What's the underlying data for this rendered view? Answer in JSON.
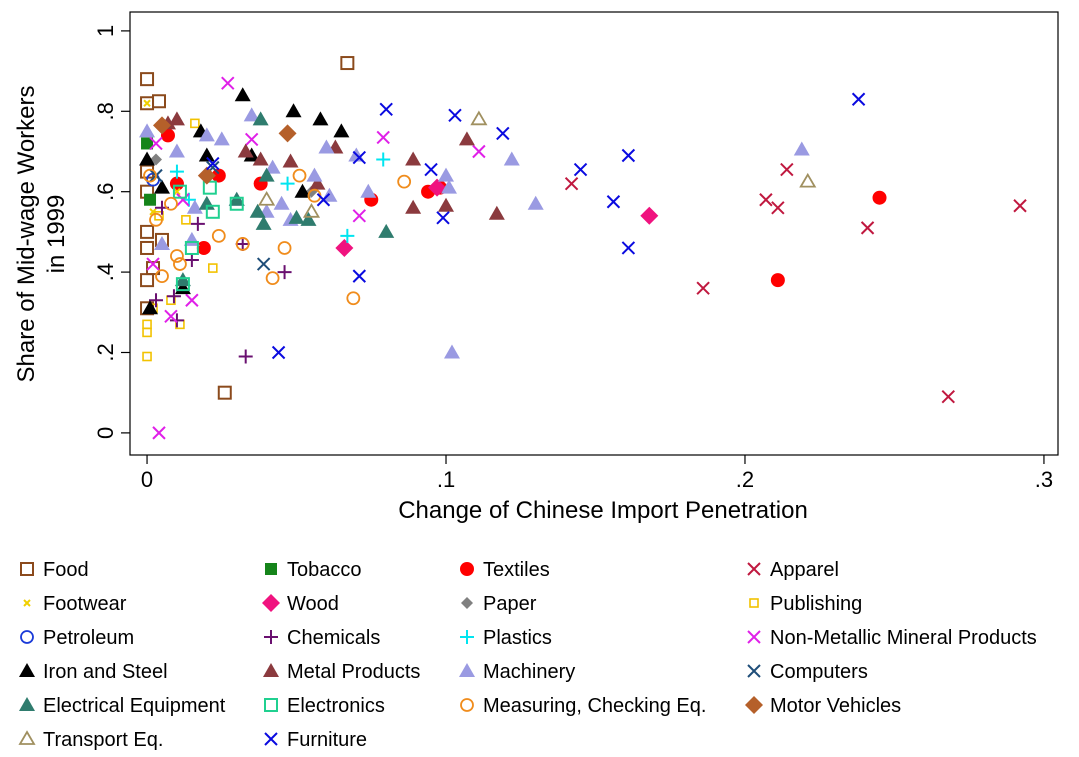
{
  "chart_data": {
    "type": "scatter",
    "xlabel": "Change of Chinese Import Penetration",
    "ylabel": [
      "Share of Mid-wage Workers",
      "in 1999"
    ],
    "xlim": [
      -0.0057,
      0.3047
    ],
    "ylim": [
      -0.055,
      1.047
    ],
    "xticks": [
      0,
      {
        "value": 0.1,
        "label": ".1"
      },
      {
        "value": 0.2,
        "label": ".2"
      },
      {
        "value": 0.3,
        "label": ".3"
      }
    ],
    "yticks": [
      0,
      {
        "value": 0.2,
        "label": ".2"
      },
      {
        "value": 0.4,
        "label": ".4"
      },
      {
        "value": 0.6,
        "label": ".6"
      },
      {
        "value": 0.8,
        "label": ".8"
      },
      1
    ],
    "legend_columns": 4,
    "series": [
      {
        "name": "Food",
        "color": "#8b4a1c",
        "marker": "square-open",
        "x": [
          0,
          0,
          0.004,
          0.067,
          0.026,
          0,
          0,
          0,
          0,
          0.005,
          0.002,
          0,
          0
        ],
        "values": [
          0.88,
          0.82,
          0.825,
          0.92,
          0.1,
          0.5,
          0.46,
          0.38,
          0.31,
          0.48,
          0.41,
          0.6,
          0.65
        ]
      },
      {
        "name": "Tobacco",
        "color": "#15841a",
        "marker": "square",
        "x": [
          0,
          0.001
        ],
        "values": [
          0.72,
          0.58
        ]
      },
      {
        "name": "Textiles",
        "color": "#ff0000",
        "marker": "circle",
        "x": [
          0.075,
          0.094,
          0.098,
          0.211,
          0.245,
          0.007,
          0.038,
          0.024,
          0.019,
          0.01
        ],
        "values": [
          0.58,
          0.6,
          0.61,
          0.38,
          0.585,
          0.74,
          0.62,
          0.64,
          0.46,
          0.62
        ]
      },
      {
        "name": "Apparel",
        "color": "#c0183f",
        "marker": "x",
        "x": [
          0.142,
          0.186,
          0.207,
          0.211,
          0.214,
          0.241,
          0.268,
          0.292
        ],
        "values": [
          0.62,
          0.36,
          0.58,
          0.56,
          0.655,
          0.51,
          0.09,
          0.565
        ]
      },
      {
        "name": "Footwear",
        "color": "#f0d000",
        "marker": "x-small",
        "x": [
          0,
          0.002,
          0.01
        ],
        "values": [
          0.82,
          0.55,
          0.6
        ]
      },
      {
        "name": "Wood",
        "color": "#f0137f",
        "marker": "diamond",
        "x": [
          0.066,
          0.168,
          0.097
        ],
        "values": [
          0.46,
          0.54,
          0.61
        ]
      },
      {
        "name": "Paper",
        "color": "#808080",
        "marker": "diamond-small",
        "x": [
          0.003,
          0.055
        ],
        "values": [
          0.68,
          0.6
        ]
      },
      {
        "name": "Publishing",
        "color": "#f2c200",
        "marker": "square-open-small",
        "x": [
          0,
          0,
          0,
          0.002,
          0.011,
          0.022,
          0.013,
          0.016,
          0.008,
          0.004
        ],
        "values": [
          0.19,
          0.25,
          0.27,
          0.31,
          0.27,
          0.41,
          0.53,
          0.77,
          0.33,
          0.54
        ]
      },
      {
        "name": "Petroleum",
        "color": "#1a3ad8",
        "marker": "circle-open",
        "x": [
          0.002
        ],
        "values": [
          0.63
        ]
      },
      {
        "name": "Chemicals",
        "color": "#6a1070",
        "marker": "plus",
        "x": [
          0.003,
          0.009,
          0.01,
          0.015,
          0.017,
          0.033,
          0.046,
          0.032,
          0.005,
          0.02
        ],
        "values": [
          0.33,
          0.34,
          0.28,
          0.43,
          0.52,
          0.19,
          0.4,
          0.47,
          0.56,
          0.64
        ]
      },
      {
        "name": "Plastics",
        "color": "#00e5f0",
        "marker": "plus",
        "x": [
          0.067,
          0.079,
          0.01,
          0.014,
          0.047
        ],
        "values": [
          0.49,
          0.68,
          0.65,
          0.58,
          0.62
        ]
      },
      {
        "name": "Non-Metallic Mineral Products",
        "color": "#e020e8",
        "marker": "x",
        "x": [
          0.002,
          0.004,
          0.027,
          0.008,
          0.015,
          0.071,
          0.079,
          0.111,
          0.035,
          0.003,
          0.012
        ],
        "values": [
          0.42,
          0.0,
          0.87,
          0.29,
          0.33,
          0.54,
          0.735,
          0.7,
          0.73,
          0.72,
          0.58
        ]
      },
      {
        "name": "Iron and Steel",
        "color": "#000000",
        "marker": "triangle",
        "x": [
          0.001,
          0.012,
          0.032,
          0.049,
          0.058,
          0.065,
          0.018,
          0.0,
          0.005,
          0.035,
          0.052,
          0.02
        ],
        "values": [
          0.31,
          0.36,
          0.84,
          0.8,
          0.78,
          0.75,
          0.75,
          0.68,
          0.61,
          0.69,
          0.6,
          0.69
        ]
      },
      {
        "name": "Metal Products",
        "color": "#8b3a3e",
        "marker": "triangle",
        "x": [
          0.007,
          0.01,
          0.033,
          0.038,
          0.048,
          0.063,
          0.089,
          0.089,
          0.1,
          0.107,
          0.117,
          0.057
        ],
        "values": [
          0.77,
          0.78,
          0.7,
          0.68,
          0.675,
          0.71,
          0.56,
          0.68,
          0.565,
          0.73,
          0.545,
          0.62
        ]
      },
      {
        "name": "Machinery",
        "color": "#9a9ae2",
        "marker": "triangle",
        "x": [
          0.005,
          0.015,
          0.03,
          0.035,
          0.04,
          0.042,
          0.056,
          0.061,
          0.07,
          0.074,
          0.1,
          0.101,
          0.102,
          0.122,
          0.13,
          0.219,
          0.0,
          0.01,
          0.02,
          0.025,
          0.045,
          0.06,
          0.048,
          0.016
        ],
        "values": [
          0.47,
          0.48,
          0.58,
          0.79,
          0.55,
          0.66,
          0.64,
          0.59,
          0.69,
          0.6,
          0.64,
          0.61,
          0.2,
          0.68,
          0.57,
          0.705,
          0.75,
          0.7,
          0.74,
          0.73,
          0.57,
          0.71,
          0.53,
          0.56
        ]
      },
      {
        "name": "Computers",
        "color": "#1f4e79",
        "marker": "x",
        "x": [
          0.039,
          0.022,
          0.003
        ],
        "values": [
          0.42,
          0.66,
          0.64
        ]
      },
      {
        "name": "Electrical Equipment",
        "color": "#2f7c6e",
        "marker": "triangle",
        "x": [
          0.037,
          0.039,
          0.038,
          0.04,
          0.05,
          0.054,
          0.08,
          0.012,
          0.03,
          0.02
        ],
        "values": [
          0.55,
          0.52,
          0.78,
          0.64,
          0.535,
          0.53,
          0.5,
          0.38,
          0.58,
          0.57
        ]
      },
      {
        "name": "Electronics",
        "color": "#20d090",
        "marker": "square-open",
        "x": [
          0.012,
          0.015,
          0.021,
          0.03,
          0.022,
          0.011
        ],
        "values": [
          0.37,
          0.46,
          0.61,
          0.57,
          0.55,
          0.6
        ]
      },
      {
        "name": "Measuring, Checking Eq.",
        "color": "#f08c1c",
        "marker": "circle-open",
        "x": [
          0.001,
          0.003,
          0.005,
          0.01,
          0.011,
          0.024,
          0.032,
          0.046,
          0.051,
          0.069,
          0.086,
          0.056,
          0.042,
          0.008
        ],
        "values": [
          0.64,
          0.53,
          0.39,
          0.44,
          0.42,
          0.49,
          0.47,
          0.46,
          0.64,
          0.335,
          0.625,
          0.59,
          0.385,
          0.57
        ]
      },
      {
        "name": "Motor Vehicles",
        "color": "#b5602a",
        "marker": "diamond",
        "x": [
          0.047,
          0.005,
          0.02
        ],
        "values": [
          0.745,
          0.765,
          0.64
        ]
      },
      {
        "name": "Transport Eq.",
        "color": "#a09060",
        "marker": "triangle-open",
        "x": [
          0.111,
          0.221,
          0.04,
          0.055
        ],
        "values": [
          0.78,
          0.625,
          0.58,
          0.55
        ]
      },
      {
        "name": "Furniture",
        "color": "#0a0ae0",
        "marker": "x",
        "x": [
          0.044,
          0.071,
          0.071,
          0.08,
          0.095,
          0.099,
          0.103,
          0.119,
          0.145,
          0.156,
          0.161,
          0.161,
          0.238,
          0.059,
          0.022
        ],
        "values": [
          0.2,
          0.39,
          0.685,
          0.805,
          0.655,
          0.535,
          0.79,
          0.745,
          0.655,
          0.575,
          0.46,
          0.69,
          0.83,
          0.58,
          0.67
        ]
      }
    ]
  }
}
